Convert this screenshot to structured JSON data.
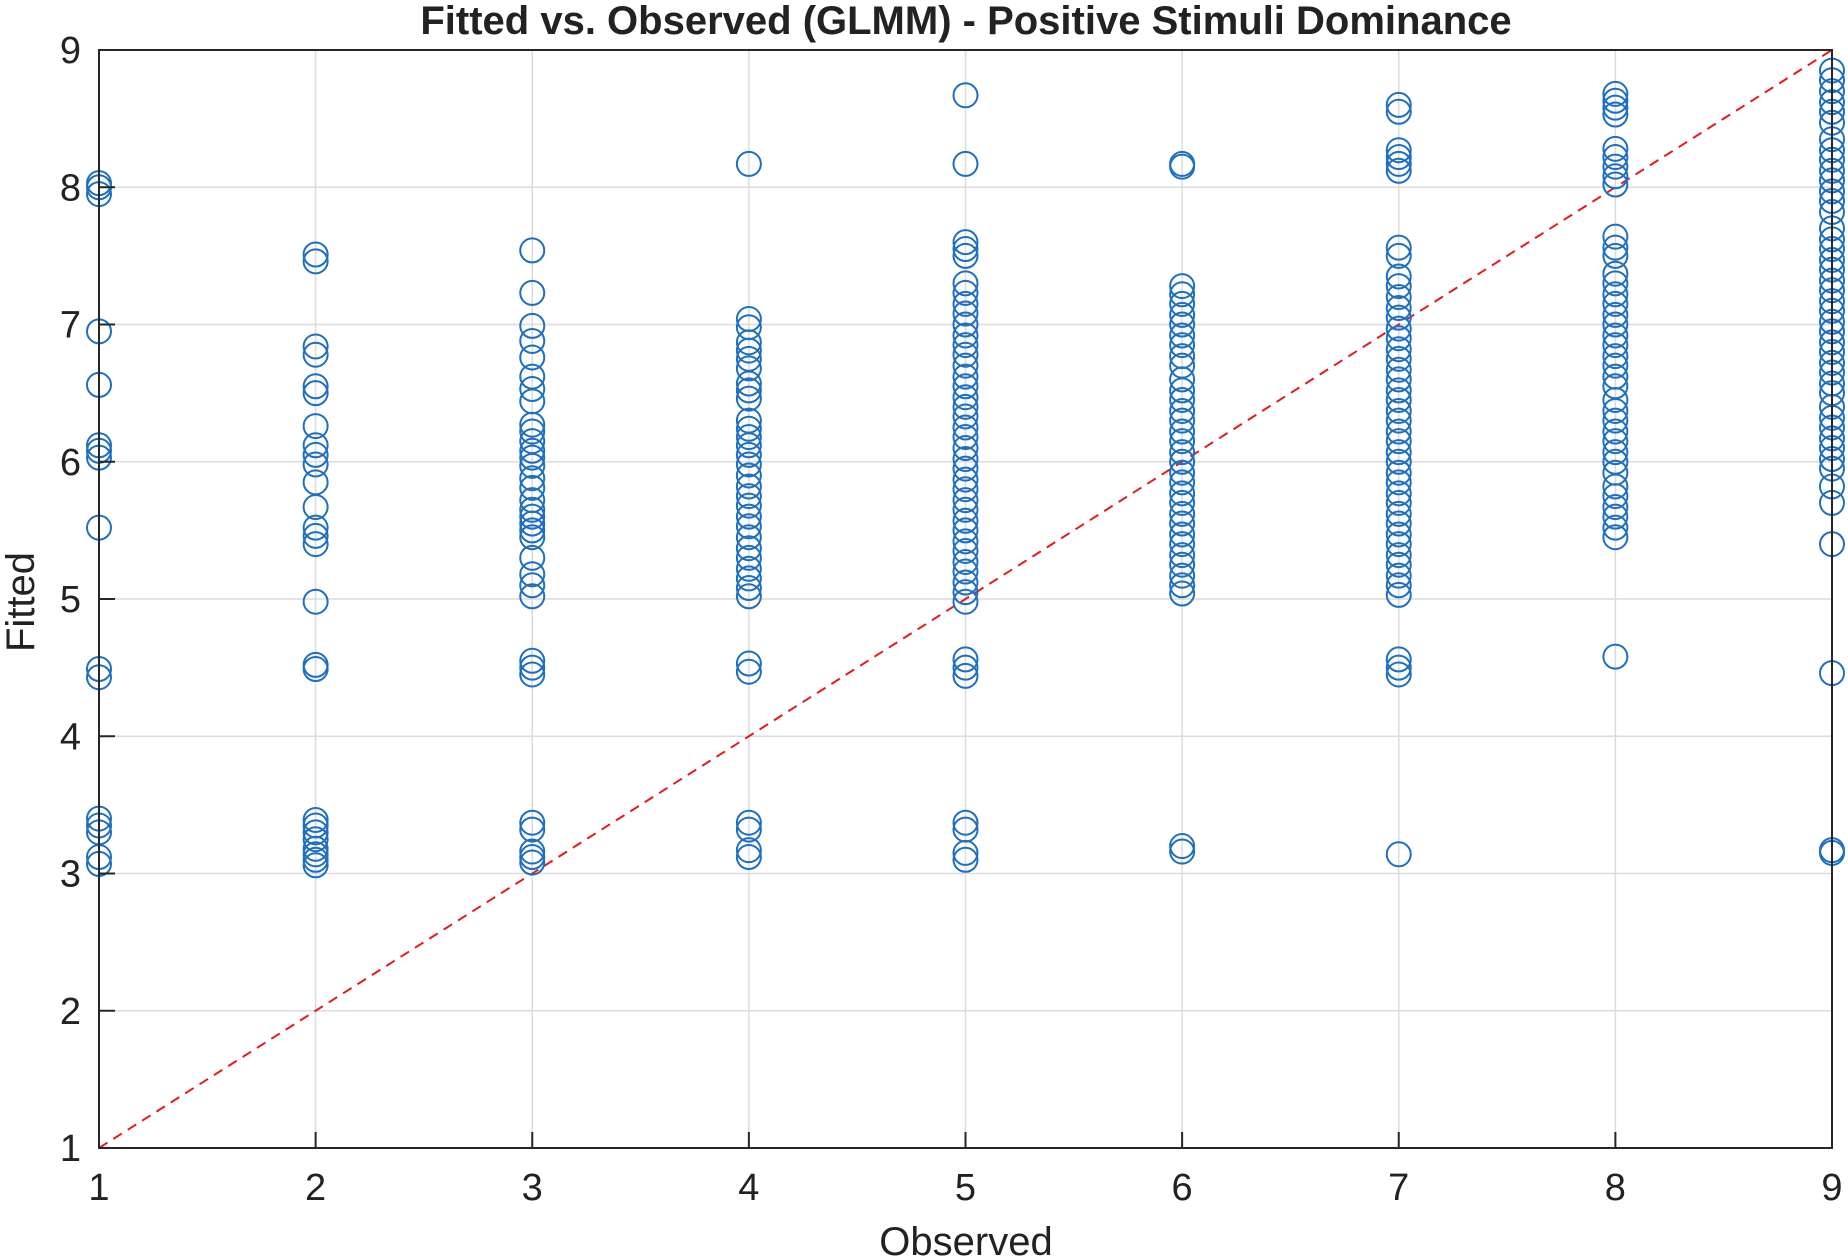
{
  "chart_data": {
    "type": "scatter",
    "title": "Fitted vs. Observed (GLMM) - Positive Stimuli Dominance",
    "xlabel": "Observed",
    "ylabel": "Fitted",
    "xlim": [
      1,
      9
    ],
    "ylim": [
      1,
      9
    ],
    "xticks": [
      "1",
      "2",
      "3",
      "4",
      "5",
      "6",
      "7",
      "8",
      "9"
    ],
    "yticks": [
      "1",
      "2",
      "3",
      "4",
      "5",
      "6",
      "7",
      "8",
      "9"
    ],
    "grid": true,
    "legend": "none",
    "colors": {
      "points": "#1f6fc1",
      "reference_line": "#e41a1c"
    },
    "reference_line": {
      "style": "dashed",
      "from": [
        1,
        1
      ],
      "to": [
        9,
        9
      ]
    },
    "series": [
      {
        "marker": "open-circle",
        "points": [
          [
            1,
            8.0
          ],
          [
            1,
            7.95
          ],
          [
            1,
            8.03
          ],
          [
            1,
            6.95
          ],
          [
            1,
            6.56
          ],
          [
            1,
            6.12
          ],
          [
            1,
            6.08
          ],
          [
            1,
            6.03
          ],
          [
            1,
            5.52
          ],
          [
            1,
            4.49
          ],
          [
            1,
            4.43
          ],
          [
            1,
            3.4
          ],
          [
            1,
            3.35
          ],
          [
            1,
            3.3
          ],
          [
            1,
            3.12
          ],
          [
            1,
            3.07
          ],
          [
            2,
            7.51
          ],
          [
            2,
            7.46
          ],
          [
            2,
            6.84
          ],
          [
            2,
            6.78
          ],
          [
            2,
            6.55
          ],
          [
            2,
            6.5
          ],
          [
            2,
            6.26
          ],
          [
            2,
            6.12
          ],
          [
            2,
            6.05
          ],
          [
            2,
            5.98
          ],
          [
            2,
            5.85
          ],
          [
            2,
            5.67
          ],
          [
            2,
            5.52
          ],
          [
            2,
            5.46
          ],
          [
            2,
            5.4
          ],
          [
            2,
            4.98
          ],
          [
            2,
            4.52
          ],
          [
            2,
            4.49
          ],
          [
            2,
            3.39
          ],
          [
            2,
            3.35
          ],
          [
            2,
            3.3
          ],
          [
            2,
            3.25
          ],
          [
            2,
            3.18
          ],
          [
            2,
            3.14
          ],
          [
            2,
            3.1
          ],
          [
            2,
            3.06
          ],
          [
            3,
            7.54
          ],
          [
            3,
            7.23
          ],
          [
            3,
            6.99
          ],
          [
            3,
            6.88
          ],
          [
            3,
            6.76
          ],
          [
            3,
            6.62
          ],
          [
            3,
            6.53
          ],
          [
            3,
            6.44
          ],
          [
            3,
            6.27
          ],
          [
            3,
            6.22
          ],
          [
            3,
            6.15
          ],
          [
            3,
            6.08
          ],
          [
            3,
            6.03
          ],
          [
            3,
            5.97
          ],
          [
            3,
            5.88
          ],
          [
            3,
            5.81
          ],
          [
            3,
            5.72
          ],
          [
            3,
            5.65
          ],
          [
            3,
            5.6
          ],
          [
            3,
            5.55
          ],
          [
            3,
            5.5
          ],
          [
            3,
            5.45
          ],
          [
            3,
            5.3
          ],
          [
            3,
            5.18
          ],
          [
            3,
            5.1
          ],
          [
            3,
            5.02
          ],
          [
            3,
            4.55
          ],
          [
            3,
            4.5
          ],
          [
            3,
            4.45
          ],
          [
            3,
            3.37
          ],
          [
            3,
            3.32
          ],
          [
            3,
            3.16
          ],
          [
            3,
            3.12
          ],
          [
            3,
            3.08
          ],
          [
            4,
            8.17
          ],
          [
            4,
            7.04
          ],
          [
            4,
            6.98
          ],
          [
            4,
            6.87
          ],
          [
            4,
            6.81
          ],
          [
            4,
            6.75
          ],
          [
            4,
            6.68
          ],
          [
            4,
            6.57
          ],
          [
            4,
            6.52
          ],
          [
            4,
            6.46
          ],
          [
            4,
            6.3
          ],
          [
            4,
            6.24
          ],
          [
            4,
            6.18
          ],
          [
            4,
            6.12
          ],
          [
            4,
            6.05
          ],
          [
            4,
            5.98
          ],
          [
            4,
            5.9
          ],
          [
            4,
            5.82
          ],
          [
            4,
            5.75
          ],
          [
            4,
            5.68
          ],
          [
            4,
            5.6
          ],
          [
            4,
            5.53
          ],
          [
            4,
            5.45
          ],
          [
            4,
            5.37
          ],
          [
            4,
            5.3
          ],
          [
            4,
            5.22
          ],
          [
            4,
            5.15
          ],
          [
            4,
            5.08
          ],
          [
            4,
            5.02
          ],
          [
            4,
            4.53
          ],
          [
            4,
            4.47
          ],
          [
            4,
            3.37
          ],
          [
            4,
            3.32
          ],
          [
            4,
            3.17
          ],
          [
            4,
            3.12
          ],
          [
            5,
            8.67
          ],
          [
            5,
            8.17
          ],
          [
            5,
            7.6
          ],
          [
            5,
            7.55
          ],
          [
            5,
            7.5
          ],
          [
            5,
            7.3
          ],
          [
            5,
            7.23
          ],
          [
            5,
            7.15
          ],
          [
            5,
            7.08
          ],
          [
            5,
            7.0
          ],
          [
            5,
            6.92
          ],
          [
            5,
            6.85
          ],
          [
            5,
            6.78
          ],
          [
            5,
            6.7
          ],
          [
            5,
            6.62
          ],
          [
            5,
            6.55
          ],
          [
            5,
            6.47
          ],
          [
            5,
            6.4
          ],
          [
            5,
            6.33
          ],
          [
            5,
            6.25
          ],
          [
            5,
            6.18
          ],
          [
            5,
            6.1
          ],
          [
            5,
            6.02
          ],
          [
            5,
            5.95
          ],
          [
            5,
            5.87
          ],
          [
            5,
            5.8
          ],
          [
            5,
            5.72
          ],
          [
            5,
            5.65
          ],
          [
            5,
            5.57
          ],
          [
            5,
            5.5
          ],
          [
            5,
            5.42
          ],
          [
            5,
            5.35
          ],
          [
            5,
            5.27
          ],
          [
            5,
            5.2
          ],
          [
            5,
            5.12
          ],
          [
            5,
            5.05
          ],
          [
            5,
            4.98
          ],
          [
            5,
            4.56
          ],
          [
            5,
            4.5
          ],
          [
            5,
            4.44
          ],
          [
            5,
            3.37
          ],
          [
            5,
            3.32
          ],
          [
            5,
            3.15
          ],
          [
            5,
            3.1
          ],
          [
            6,
            8.17
          ],
          [
            6,
            8.15
          ],
          [
            6,
            7.28
          ],
          [
            6,
            7.22
          ],
          [
            6,
            7.15
          ],
          [
            6,
            7.07
          ],
          [
            6,
            7.0
          ],
          [
            6,
            6.92
          ],
          [
            6,
            6.85
          ],
          [
            6,
            6.77
          ],
          [
            6,
            6.7
          ],
          [
            6,
            6.6
          ],
          [
            6,
            6.52
          ],
          [
            6,
            6.45
          ],
          [
            6,
            6.37
          ],
          [
            6,
            6.3
          ],
          [
            6,
            6.22
          ],
          [
            6,
            6.15
          ],
          [
            6,
            6.07
          ],
          [
            6,
            6.0
          ],
          [
            6,
            5.92
          ],
          [
            6,
            5.85
          ],
          [
            6,
            5.77
          ],
          [
            6,
            5.7
          ],
          [
            6,
            5.62
          ],
          [
            6,
            5.55
          ],
          [
            6,
            5.47
          ],
          [
            6,
            5.4
          ],
          [
            6,
            5.32
          ],
          [
            6,
            5.25
          ],
          [
            6,
            5.17
          ],
          [
            6,
            5.1
          ],
          [
            6,
            5.04
          ],
          [
            6,
            3.2
          ],
          [
            6,
            3.16
          ],
          [
            7,
            8.6
          ],
          [
            7,
            8.55
          ],
          [
            7,
            8.27
          ],
          [
            7,
            8.22
          ],
          [
            7,
            8.17
          ],
          [
            7,
            8.12
          ],
          [
            7,
            7.56
          ],
          [
            7,
            7.5
          ],
          [
            7,
            7.35
          ],
          [
            7,
            7.28
          ],
          [
            7,
            7.2
          ],
          [
            7,
            7.12
          ],
          [
            7,
            7.05
          ],
          [
            7,
            6.97
          ],
          [
            7,
            6.9
          ],
          [
            7,
            6.82
          ],
          [
            7,
            6.75
          ],
          [
            7,
            6.67
          ],
          [
            7,
            6.6
          ],
          [
            7,
            6.52
          ],
          [
            7,
            6.45
          ],
          [
            7,
            6.37
          ],
          [
            7,
            6.3
          ],
          [
            7,
            6.22
          ],
          [
            7,
            6.15
          ],
          [
            7,
            6.07
          ],
          [
            7,
            6.0
          ],
          [
            7,
            5.92
          ],
          [
            7,
            5.85
          ],
          [
            7,
            5.77
          ],
          [
            7,
            5.7
          ],
          [
            7,
            5.62
          ],
          [
            7,
            5.55
          ],
          [
            7,
            5.47
          ],
          [
            7,
            5.4
          ],
          [
            7,
            5.32
          ],
          [
            7,
            5.25
          ],
          [
            7,
            5.17
          ],
          [
            7,
            5.1
          ],
          [
            7,
            5.03
          ],
          [
            7,
            4.56
          ],
          [
            7,
            4.5
          ],
          [
            7,
            4.45
          ],
          [
            7,
            3.14
          ],
          [
            8,
            8.68
          ],
          [
            8,
            8.63
          ],
          [
            8,
            8.58
          ],
          [
            8,
            8.53
          ],
          [
            8,
            8.28
          ],
          [
            8,
            8.22
          ],
          [
            8,
            8.15
          ],
          [
            8,
            8.08
          ],
          [
            8,
            8.02
          ],
          [
            8,
            7.64
          ],
          [
            8,
            7.56
          ],
          [
            8,
            7.5
          ],
          [
            8,
            7.37
          ],
          [
            8,
            7.3
          ],
          [
            8,
            7.22
          ],
          [
            8,
            7.15
          ],
          [
            8,
            7.07
          ],
          [
            8,
            7.0
          ],
          [
            8,
            6.92
          ],
          [
            8,
            6.85
          ],
          [
            8,
            6.77
          ],
          [
            8,
            6.7
          ],
          [
            8,
            6.62
          ],
          [
            8,
            6.55
          ],
          [
            8,
            6.45
          ],
          [
            8,
            6.37
          ],
          [
            8,
            6.3
          ],
          [
            8,
            6.22
          ],
          [
            8,
            6.15
          ],
          [
            8,
            6.07
          ],
          [
            8,
            6.0
          ],
          [
            8,
            5.92
          ],
          [
            8,
            5.82
          ],
          [
            8,
            5.75
          ],
          [
            8,
            5.67
          ],
          [
            8,
            5.6
          ],
          [
            8,
            5.52
          ],
          [
            8,
            5.45
          ],
          [
            8,
            4.58
          ],
          [
            9,
            8.85
          ],
          [
            9,
            8.78
          ],
          [
            9,
            8.7
          ],
          [
            9,
            8.62
          ],
          [
            9,
            8.55
          ],
          [
            9,
            8.47
          ],
          [
            9,
            8.35
          ],
          [
            9,
            8.27
          ],
          [
            9,
            8.2
          ],
          [
            9,
            8.12
          ],
          [
            9,
            8.05
          ],
          [
            9,
            7.97
          ],
          [
            9,
            7.9
          ],
          [
            9,
            7.82
          ],
          [
            9,
            7.7
          ],
          [
            9,
            7.62
          ],
          [
            9,
            7.55
          ],
          [
            9,
            7.47
          ],
          [
            9,
            7.4
          ],
          [
            9,
            7.32
          ],
          [
            9,
            7.25
          ],
          [
            9,
            7.17
          ],
          [
            9,
            7.1
          ],
          [
            9,
            7.02
          ],
          [
            9,
            6.95
          ],
          [
            9,
            6.87
          ],
          [
            9,
            6.8
          ],
          [
            9,
            6.72
          ],
          [
            9,
            6.65
          ],
          [
            9,
            6.57
          ],
          [
            9,
            6.5
          ],
          [
            9,
            6.4
          ],
          [
            9,
            6.32
          ],
          [
            9,
            6.25
          ],
          [
            9,
            6.17
          ],
          [
            9,
            6.1
          ],
          [
            9,
            6.02
          ],
          [
            9,
            5.95
          ],
          [
            9,
            5.82
          ],
          [
            9,
            5.7
          ],
          [
            9,
            5.4
          ],
          [
            9,
            4.46
          ],
          [
            9,
            3.17
          ],
          [
            9,
            3.15
          ]
        ]
      }
    ]
  }
}
